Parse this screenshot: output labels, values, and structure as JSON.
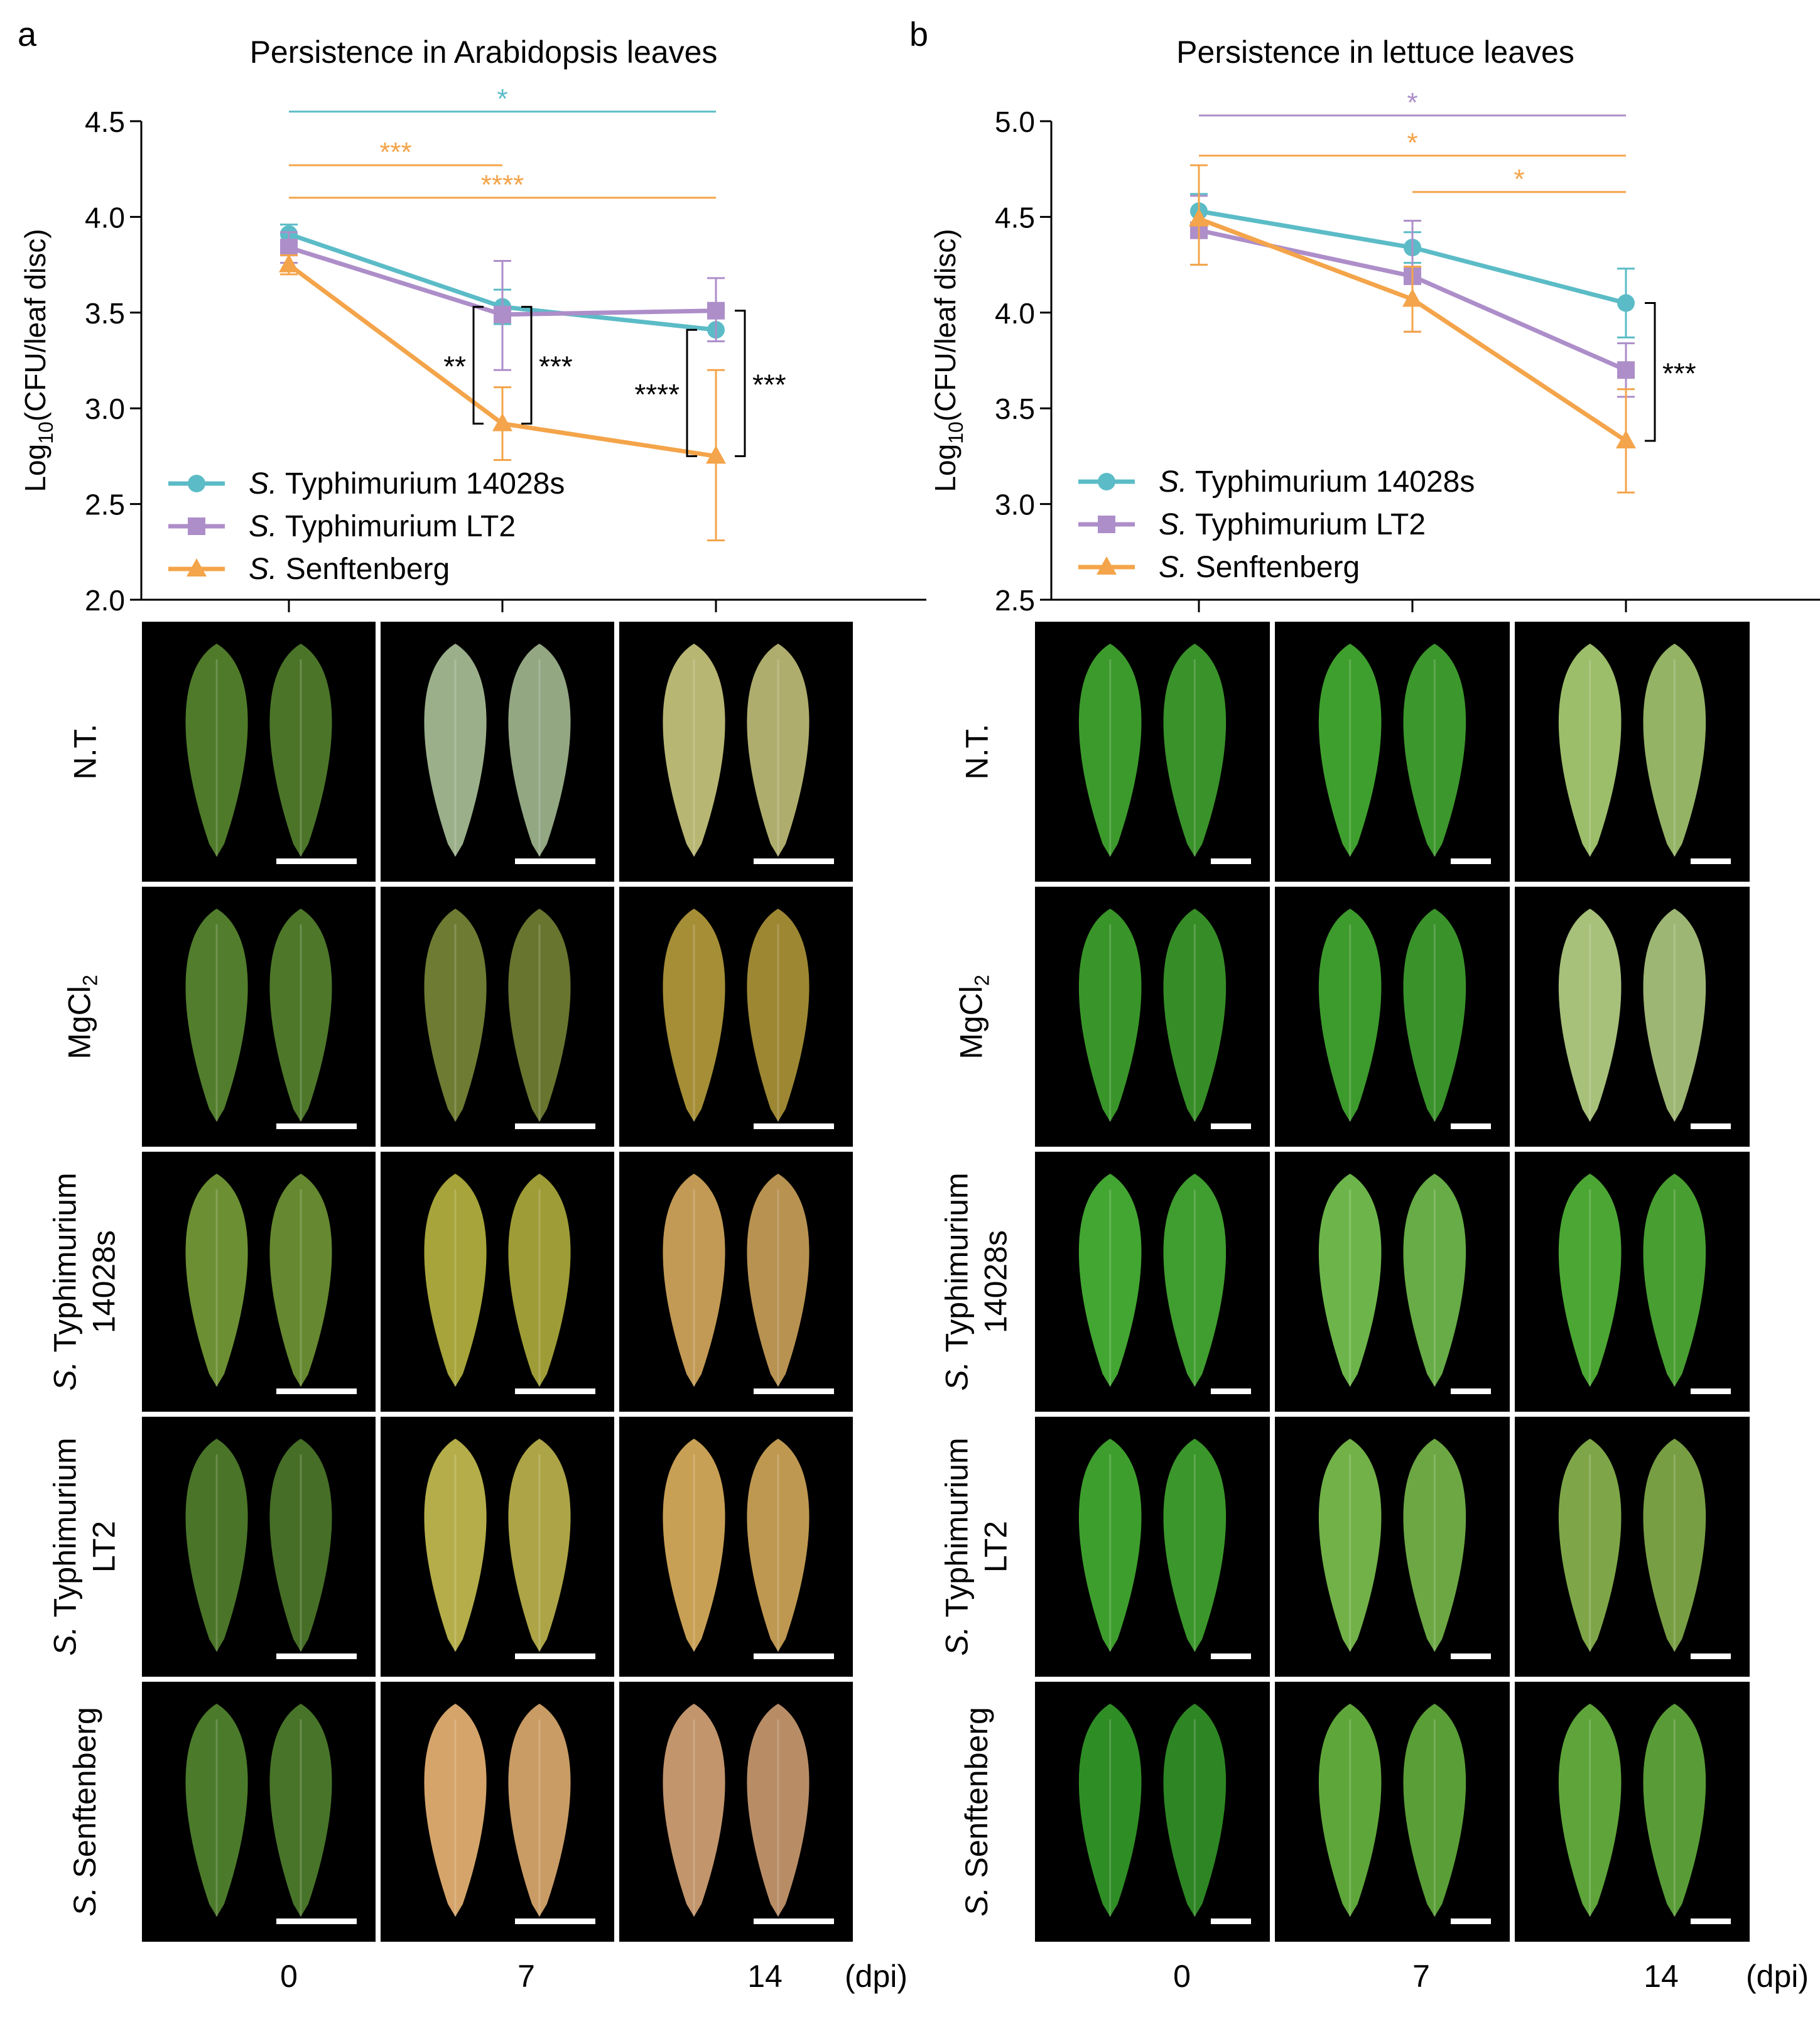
{
  "figure": {
    "panels": [
      {
        "id": "a",
        "letter": "a",
        "title": "Persistence in Arabidopsis leaves",
        "ylabel_main": "Log",
        "ylabel_sub": "10",
        "ylabel_rest": "(CFU/leaf disc)",
        "row_labels": [
          {
            "lines": [
              "N.T."
            ]
          },
          {
            "lines": [
              "MgCl2"
            ],
            "sub": "2"
          },
          {
            "italic": "S.",
            "lines": [
              "Typhimurium",
              "14028s"
            ]
          },
          {
            "italic": "S.",
            "lines": [
              "Typhimurium",
              "LT2"
            ]
          },
          {
            "italic": "S.",
            "lines": [
              "Senftenberg"
            ]
          }
        ],
        "col_labels": [
          "0",
          "7",
          "14"
        ],
        "dpi_unit": "(dpi)"
      },
      {
        "id": "b",
        "letter": "b",
        "title": "Persistence in lettuce leaves",
        "ylabel_main": "Log",
        "ylabel_sub": "10",
        "ylabel_rest": "(CFU/leaf disc)",
        "row_labels": [
          {
            "lines": [
              "N.T."
            ]
          },
          {
            "lines": [
              "MgCl2"
            ],
            "sub": "2"
          },
          {
            "italic": "S.",
            "lines": [
              "Typhimurium",
              "14028s"
            ]
          },
          {
            "italic": "S.",
            "lines": [
              "Typhimurium",
              "LT2"
            ]
          },
          {
            "italic": "S.",
            "lines": [
              "Senftenberg"
            ]
          }
        ],
        "col_labels": [
          "0",
          "7",
          "14"
        ],
        "dpi_unit": "(dpi)"
      }
    ],
    "leaf_colors": {
      "a": [
        [
          "#4f7a2a",
          "#9bb08a",
          "#b8b673"
        ],
        [
          "#527d2c",
          "#6e7b32",
          "#a58e36"
        ],
        [
          "#6c8f33",
          "#a6a43a",
          "#c29a55"
        ],
        [
          "#4a7428",
          "#b5ad4a",
          "#c8a055"
        ],
        [
          "#4c7a2b",
          "#d4a46a",
          "#c2956c"
        ]
      ],
      "b": [
        [
          "#3c9a2c",
          "#3f9f2e",
          "#9cbd6a"
        ],
        [
          "#399529",
          "#3d9a2d",
          "#a7c07a"
        ],
        [
          "#43a532",
          "#6db54a",
          "#4ca634"
        ],
        [
          "#3e9e2d",
          "#72b048",
          "#7ea648"
        ],
        [
          "#2f8d25",
          "#5fa63a",
          "#5ea43a"
        ]
      ]
    }
  },
  "chart_data": [
    {
      "type": "line",
      "title": "Persistence in Arabidopsis leaves",
      "xlabel": "dpi",
      "ylabel": "Log10(CFU/leaf disc)",
      "x": [
        0,
        7,
        14
      ],
      "ylim": [
        2.0,
        4.5
      ],
      "yticks": [
        "2.0",
        "2.5",
        "3.0",
        "3.5",
        "4.0",
        "4.5"
      ],
      "series": [
        {
          "name": "S. Typhimurium 14028s",
          "italic": "S.",
          "rest": "Typhimurium 14028s",
          "color": "#5bbcc7",
          "marker": "circle",
          "values": [
            3.91,
            3.53,
            3.41
          ],
          "err_lo": [
            0.05,
            0.09,
            0.06
          ],
          "err_hi": [
            0.05,
            0.09,
            0.06
          ]
        },
        {
          "name": "S. Typhimurium LT2",
          "italic": "S.",
          "rest": "Typhimurium LT2",
          "color": "#ad8ec9",
          "marker": "square",
          "values": [
            3.84,
            3.49,
            3.51
          ],
          "err_lo": [
            0.08,
            0.29,
            0.16
          ],
          "err_hi": [
            0.08,
            0.28,
            0.17
          ]
        },
        {
          "name": "S. Senftenberg",
          "italic": "S.",
          "rest": "Senftenberg",
          "color": "#f4a44a",
          "marker": "triangle",
          "values": [
            3.75,
            2.92,
            2.75
          ],
          "err_lo": [
            0.05,
            0.19,
            0.44
          ],
          "err_hi": [
            0.05,
            0.19,
            0.45
          ]
        }
      ],
      "significance": [
        {
          "x1": 0,
          "x2": 14,
          "y": 4.55,
          "label": "*",
          "color": "#5bbcc7"
        },
        {
          "x1": 0,
          "x2": 7,
          "y": 4.27,
          "label": "***",
          "color": "#f4a44a"
        },
        {
          "x1": 0,
          "x2": 14,
          "y": 4.1,
          "label": "****",
          "color": "#f4a44a"
        }
      ],
      "brackets": [
        {
          "x": 7,
          "y1": 3.53,
          "y2": 2.92,
          "side": "left",
          "label": "**"
        },
        {
          "x": 7,
          "y1": 3.53,
          "y2": 2.92,
          "side": "right",
          "label": "***"
        },
        {
          "x": 14,
          "y1": 3.41,
          "y2": 2.75,
          "side": "left",
          "label": "****"
        },
        {
          "x": 14,
          "y1": 3.51,
          "y2": 2.75,
          "side": "right",
          "label": "***"
        }
      ]
    },
    {
      "type": "line",
      "title": "Persistence in lettuce leaves",
      "xlabel": "dpi",
      "ylabel": "Log10(CFU/leaf disc)",
      "x": [
        0,
        7,
        14
      ],
      "ylim": [
        2.5,
        5.0
      ],
      "yticks": [
        "2.5",
        "3.0",
        "3.5",
        "4.0",
        "4.5",
        "5.0"
      ],
      "series": [
        {
          "name": "S. Typhimurium 14028s",
          "italic": "S.",
          "rest": "Typhimurium 14028s",
          "color": "#5bbcc7",
          "marker": "circle",
          "values": [
            4.53,
            4.34,
            4.05
          ],
          "err_lo": [
            0.09,
            0.08,
            0.18
          ],
          "err_hi": [
            0.09,
            0.08,
            0.18
          ]
        },
        {
          "name": "S. Typhimurium LT2",
          "italic": "S.",
          "rest": "Typhimurium LT2",
          "color": "#ad8ec9",
          "marker": "square",
          "values": [
            4.43,
            4.19,
            3.7
          ],
          "err_lo": [
            0.18,
            0.29,
            0.14
          ],
          "err_hi": [
            0.18,
            0.29,
            0.14
          ]
        },
        {
          "name": "S. Senftenberg",
          "italic": "S.",
          "rest": "Senftenberg",
          "color": "#f4a44a",
          "marker": "triangle",
          "values": [
            4.49,
            4.07,
            3.33
          ],
          "err_lo": [
            0.24,
            0.17,
            0.27
          ],
          "err_hi": [
            0.28,
            0.17,
            0.27
          ]
        }
      ],
      "significance": [
        {
          "x1": 0,
          "x2": 14,
          "y": 5.03,
          "label": "*",
          "color": "#ad8ec9"
        },
        {
          "x1": 0,
          "x2": 14,
          "y": 4.82,
          "label": "*",
          "color": "#f4a44a"
        },
        {
          "x1": 7,
          "x2": 14,
          "y": 4.63,
          "label": "*",
          "color": "#f4a44a"
        }
      ],
      "brackets": [
        {
          "x": 14,
          "y1": 4.05,
          "y2": 3.33,
          "side": "right",
          "label": "***"
        }
      ]
    }
  ]
}
